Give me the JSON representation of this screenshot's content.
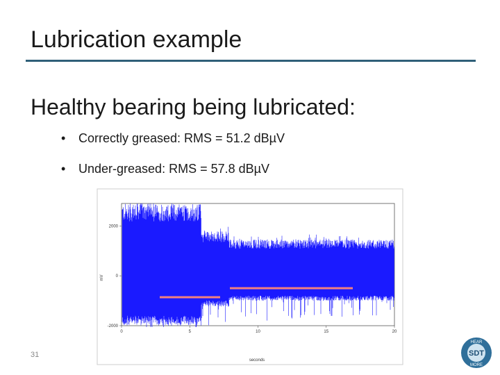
{
  "header": {
    "title": "Lubrication example"
  },
  "body": {
    "heading": "Healthy bearing being lubricated:",
    "bullets": [
      "Correctly greased: RMS = 51.2 dBµV",
      "Under-greased: RMS = 57.8 dBµV"
    ]
  },
  "figure": {
    "type": "line",
    "x_label": "seconds",
    "y_label": "mV",
    "xlim": [
      0,
      20
    ],
    "xticks": [
      0,
      5,
      10,
      15,
      20
    ],
    "ylim": [
      -2000,
      2900
    ],
    "yticks": [
      2000,
      0,
      -2000
    ],
    "color": "#1a1aff"
  },
  "footer": {
    "page_number": "31",
    "logo": {
      "text": "SDT",
      "ring_top": "HEAR",
      "ring_bottom": "MORE"
    }
  }
}
